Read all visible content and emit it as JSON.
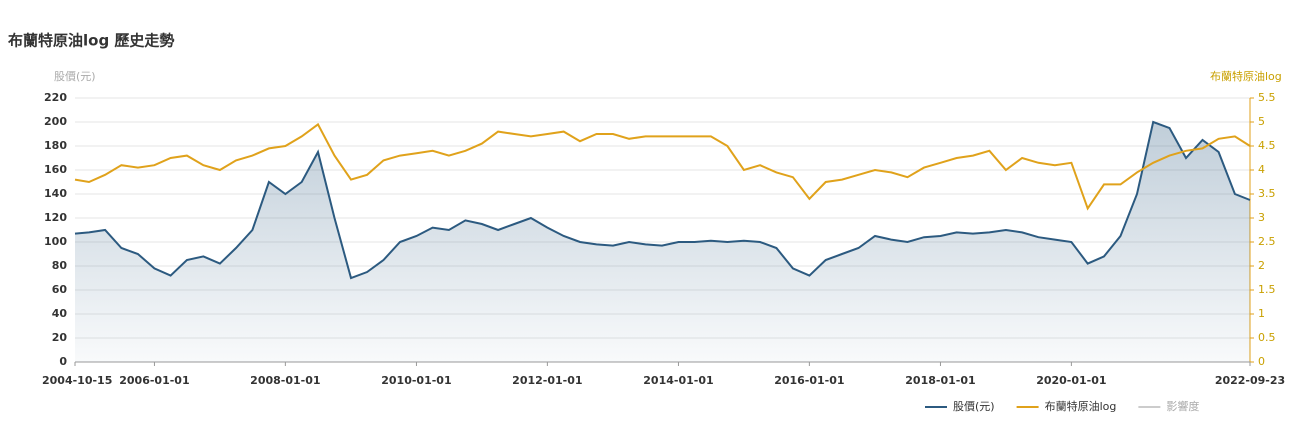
{
  "chart_data": {
    "type": "line",
    "title": "布蘭特原油log 歷史走勢",
    "y_label": "股價(元)",
    "y2_label": "布蘭特原油log",
    "x": [
      "2004-10-15",
      "2005-01-01",
      "2005-04-01",
      "2005-07-01",
      "2005-10-01",
      "2006-01-01",
      "2006-04-01",
      "2006-07-01",
      "2006-10-01",
      "2007-01-01",
      "2007-04-01",
      "2007-07-01",
      "2007-10-01",
      "2008-01-01",
      "2008-04-01",
      "2008-07-01",
      "2008-10-01",
      "2009-01-01",
      "2009-04-01",
      "2009-07-01",
      "2009-10-01",
      "2010-01-01",
      "2010-04-01",
      "2010-07-01",
      "2010-10-01",
      "2011-01-01",
      "2011-04-01",
      "2011-07-01",
      "2011-10-01",
      "2012-01-01",
      "2012-04-01",
      "2012-07-01",
      "2012-10-01",
      "2013-01-01",
      "2013-04-01",
      "2013-07-01",
      "2013-10-01",
      "2014-01-01",
      "2014-04-01",
      "2014-07-01",
      "2014-10-01",
      "2015-01-01",
      "2015-04-01",
      "2015-07-01",
      "2015-10-01",
      "2016-01-01",
      "2016-04-01",
      "2016-07-01",
      "2016-10-01",
      "2017-01-01",
      "2017-04-01",
      "2017-07-01",
      "2017-10-01",
      "2018-01-01",
      "2018-04-01",
      "2018-07-01",
      "2018-10-01",
      "2019-01-01",
      "2019-04-01",
      "2019-07-01",
      "2019-10-01",
      "2020-01-01",
      "2020-04-01",
      "2020-07-01",
      "2020-10-01",
      "2021-01-01",
      "2021-04-01",
      "2021-07-01",
      "2021-10-01",
      "2022-01-01",
      "2022-04-01",
      "2022-07-01",
      "2022-09-23"
    ],
    "series": [
      {
        "name": "股價(元)",
        "color": "#2c5a80",
        "values": [
          107,
          108,
          110,
          95,
          90,
          78,
          72,
          85,
          88,
          82,
          95,
          110,
          150,
          140,
          150,
          175,
          120,
          70,
          75,
          85,
          100,
          105,
          112,
          110,
          118,
          115,
          110,
          115,
          120,
          112,
          105,
          100,
          98,
          97,
          100,
          98,
          97,
          100,
          100,
          101,
          100,
          101,
          100,
          95,
          78,
          72,
          85,
          90,
          95,
          105,
          102,
          100,
          104,
          105,
          108,
          107,
          108,
          110,
          108,
          104,
          102,
          100,
          82,
          88,
          105,
          140,
          200,
          195,
          170,
          185,
          175,
          140,
          135
        ]
      },
      {
        "name": "布蘭特原油log",
        "color": "#e0a21b",
        "axis": "y2",
        "values": [
          3.8,
          3.75,
          3.9,
          4.1,
          4.05,
          4.1,
          4.25,
          4.3,
          4.1,
          4.0,
          4.2,
          4.3,
          4.45,
          4.5,
          4.7,
          4.95,
          4.3,
          3.8,
          3.9,
          4.2,
          4.3,
          4.35,
          4.4,
          4.3,
          4.4,
          4.55,
          4.8,
          4.75,
          4.7,
          4.75,
          4.8,
          4.6,
          4.75,
          4.75,
          4.65,
          4.7,
          4.7,
          4.7,
          4.7,
          4.7,
          4.5,
          4.0,
          4.1,
          3.95,
          3.85,
          3.4,
          3.75,
          3.8,
          3.9,
          4.0,
          3.95,
          3.85,
          4.05,
          4.15,
          4.25,
          4.3,
          4.4,
          4.0,
          4.25,
          4.15,
          4.1,
          4.15,
          3.2,
          3.7,
          3.7,
          3.95,
          4.15,
          4.3,
          4.4,
          4.45,
          4.65,
          4.7,
          4.5
        ]
      }
    ],
    "extra_legend": {
      "name": "影響度",
      "color": "#cccccc"
    },
    "xlim": [
      "2004-10-15",
      "2022-09-23"
    ],
    "xticks": [
      "2004-10-15",
      "2006-01-01",
      "2008-01-01",
      "2010-01-01",
      "2012-01-01",
      "2014-01-01",
      "2016-01-01",
      "2018-01-01",
      "2020-01-01",
      "2022-09-23"
    ],
    "ylim": [
      0,
      220
    ],
    "yticks": [
      0,
      20,
      40,
      60,
      80,
      100,
      120,
      140,
      160,
      180,
      200,
      220
    ],
    "y2lim": [
      0,
      5.5
    ],
    "y2ticks": [
      0,
      0.5,
      1,
      1.5,
      2,
      2.5,
      3,
      3.5,
      4,
      4.5,
      5,
      5.5
    ],
    "grid": true,
    "area_fill": true
  }
}
